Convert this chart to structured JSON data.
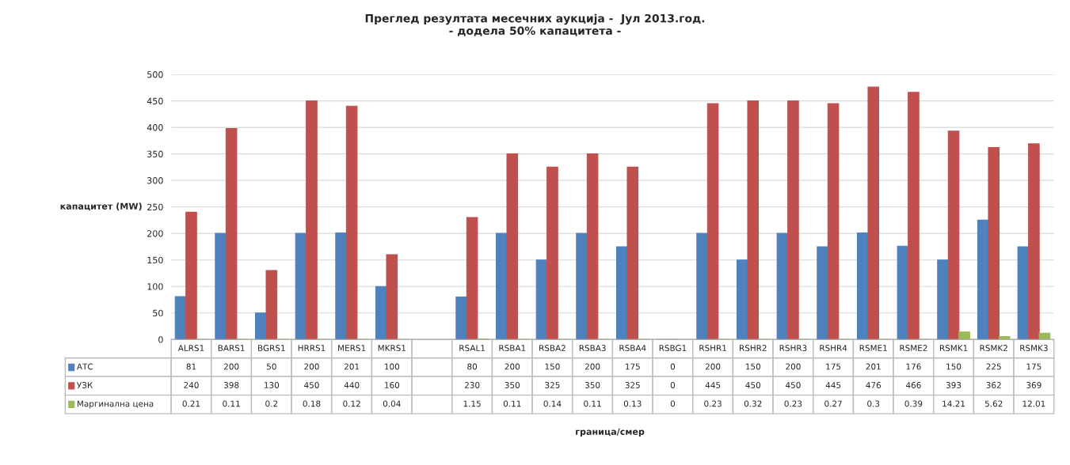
{
  "chart_data": {
    "type": "bar",
    "title": "Преглед резултата месечних аукција -  Јул 2013.год.",
    "subtitle": "- додела 50% капацитета -",
    "annotations": [
      "граница/смер"
    ],
    "ylabel": "капацитет (MW)",
    "categories": [
      "ALRS1",
      "BARS1",
      "BGRS1",
      "HRRS1",
      "MERS1",
      "MKRS1",
      null,
      "RSAL1",
      "RSBA1",
      "RSBA2",
      "RSBA3",
      "RSBA4",
      "RSBG1",
      "RSHR1",
      "RSHR2",
      "RSHR3",
      "RSHR4",
      "RSME1",
      "RSME2",
      "RSMK1",
      "RSMK2",
      "RSMK3"
    ],
    "series": [
      {
        "name": "АТС",
        "color": "#4f81bd",
        "values": [
          81,
          200,
          50,
          200,
          201,
          100,
          null,
          80,
          200,
          150,
          200,
          175,
          0,
          200,
          150,
          200,
          175,
          201,
          176,
          150,
          225,
          175
        ]
      },
      {
        "name": "УЗК",
        "color": "#c0504d",
        "values": [
          240,
          398,
          130,
          450,
          440,
          160,
          null,
          230,
          350,
          325,
          350,
          325,
          0,
          445,
          450,
          450,
          445,
          476,
          466,
          393,
          362,
          369
        ]
      },
      {
        "name": "Маргинална цена",
        "color": "#9bbb59",
        "values": [
          0.21,
          0.11,
          0.2,
          0.18,
          0.12,
          0.04,
          null,
          1.15,
          0.11,
          0.14,
          0.11,
          0.13,
          0,
          0.23,
          0.32,
          0.23,
          0.27,
          0.3,
          0.39,
          14.21,
          5.62,
          12.01
        ]
      }
    ],
    "ylim": [
      0,
      500
    ],
    "yticks": [
      0,
      50,
      100,
      150,
      200,
      250,
      300,
      350,
      400,
      450,
      500
    ],
    "grid": "y",
    "data_labels": true,
    "legend": "bottom"
  }
}
